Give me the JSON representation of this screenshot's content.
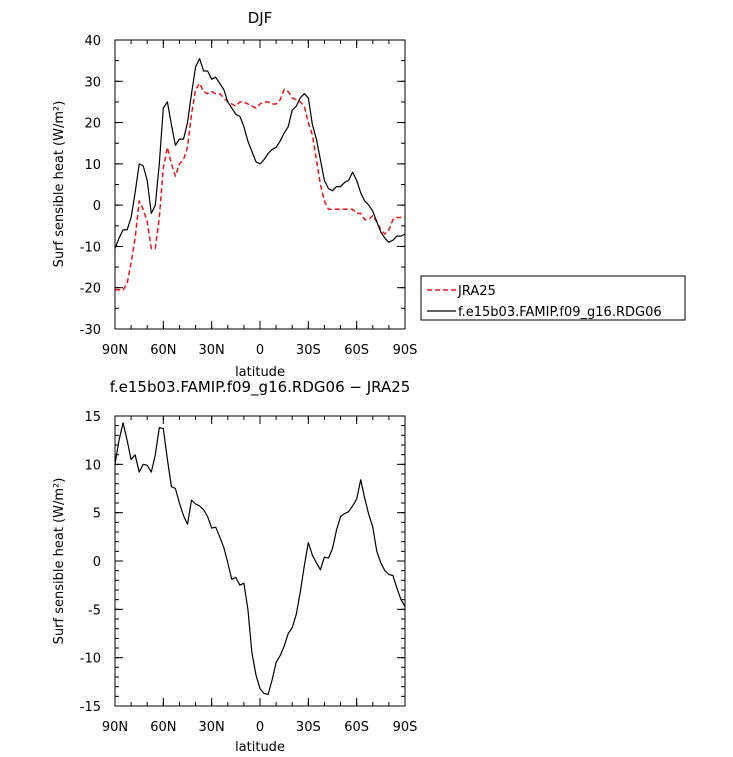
{
  "chart_data": [
    {
      "type": "line",
      "title": "DJF",
      "xlabel": "latitude",
      "ylabel": "Surf sensible heat (W/m²)",
      "xlim": [
        90,
        -90
      ],
      "ylim": [
        -30,
        40
      ],
      "x_tick_values": [
        90,
        60,
        30,
        0,
        -30,
        -60,
        -90
      ],
      "x_tick_labels": [
        "90N",
        "60N",
        "30N",
        "0",
        "30S",
        "60S",
        "90S"
      ],
      "y_ticks": [
        -30,
        -20,
        -10,
        0,
        10,
        20,
        30,
        40
      ],
      "legend_position": "right",
      "series": [
        {
          "name": "JRA25",
          "color": "#e8141c",
          "dash": "dashed",
          "x": [
            90,
            87.5,
            85,
            82.5,
            80,
            77.5,
            75,
            72.5,
            70,
            67.5,
            65,
            62.5,
            60,
            57.5,
            55,
            52.5,
            50,
            47.5,
            45,
            42.5,
            40,
            37.5,
            35,
            32.5,
            30,
            27.5,
            25,
            22.5,
            20,
            17.5,
            15,
            12.5,
            10,
            7.5,
            5,
            2.5,
            0,
            -2.5,
            -5,
            -7.5,
            -10,
            -12.5,
            -15,
            -17.5,
            -20,
            -22.5,
            -25,
            -27.5,
            -30,
            -32.5,
            -35,
            -37.5,
            -40,
            -42.5,
            -45,
            -47.5,
            -50,
            -52.5,
            -55,
            -57.5,
            -60,
            -62.5,
            -65,
            -67.5,
            -70,
            -72.5,
            -75,
            -77.5,
            -80,
            -82.5,
            -85,
            -87.5,
            -90
          ],
          "values": [
            -20.5,
            -20.5,
            -20.5,
            -19,
            -14,
            -8,
            1,
            -1,
            -4,
            -10.5,
            -10.5,
            -3,
            9,
            14,
            10,
            7,
            10,
            11,
            14,
            22,
            28,
            29.5,
            27.5,
            27,
            27.5,
            27,
            27,
            26,
            25,
            24.5,
            24,
            25,
            25,
            24.5,
            24,
            23.5,
            24.5,
            25,
            25,
            24.5,
            24.5,
            25.5,
            28,
            27.5,
            26,
            25.5,
            25,
            24,
            20,
            17,
            11,
            5,
            1,
            -1,
            -1,
            -1,
            -1,
            -1,
            -1,
            -1,
            -2,
            -2,
            -3.5,
            -3.5,
            -2.5,
            -4,
            -6,
            -7,
            -6,
            -3.5,
            -3,
            -3,
            -3
          ]
        },
        {
          "name": "f.e15b03.FAMIP.f09_g16.RDG06",
          "color": "#000000",
          "dash": "solid",
          "x": [
            90,
            87.5,
            85,
            82.5,
            80,
            77.5,
            75,
            72.5,
            70,
            67.5,
            65,
            62.5,
            60,
            57.5,
            55,
            52.5,
            50,
            47.5,
            45,
            42.5,
            40,
            37.5,
            35,
            32.5,
            30,
            27.5,
            25,
            22.5,
            20,
            17.5,
            15,
            12.5,
            10,
            7.5,
            5,
            2.5,
            0,
            -2.5,
            -5,
            -7.5,
            -10,
            -12.5,
            -15,
            -17.5,
            -20,
            -22.5,
            -25,
            -27.5,
            -30,
            -32.5,
            -35,
            -37.5,
            -40,
            -42.5,
            -45,
            -47.5,
            -50,
            -52.5,
            -55,
            -57.5,
            -60,
            -62.5,
            -65,
            -67.5,
            -70,
            -72.5,
            -75,
            -77.5,
            -80,
            -82.5,
            -85,
            -87.5,
            -90
          ],
          "values": [
            -10.5,
            -8,
            -6,
            -6,
            -3,
            3,
            10,
            9.5,
            6,
            -2,
            0,
            10,
            23.5,
            25,
            19.5,
            14.5,
            16,
            16,
            20,
            27,
            33.5,
            35.5,
            32.5,
            32.5,
            30.5,
            31,
            29.5,
            28,
            25,
            23.5,
            22,
            21.5,
            19,
            15.5,
            13,
            10.5,
            10,
            11,
            12.5,
            13.5,
            14,
            15.5,
            17.5,
            19,
            23,
            24,
            26,
            27,
            26,
            19.5,
            16,
            11,
            6,
            4,
            3.5,
            4.5,
            4.5,
            5.5,
            6,
            8,
            6,
            3,
            1,
            0,
            -1.5,
            -4,
            -6.5,
            -8,
            -9,
            -8.5,
            -7.5,
            -7.5,
            -7
          ]
        }
      ]
    },
    {
      "type": "line",
      "title": "f.e15b03.FAMIP.f09_g16.RDG06 − JRA25",
      "xlabel": "latitude",
      "ylabel": "Surf sensible heat (W/m²)",
      "xlim": [
        90,
        -90
      ],
      "ylim": [
        -15,
        15
      ],
      "x_tick_values": [
        90,
        60,
        30,
        0,
        -30,
        -60,
        -90
      ],
      "x_tick_labels": [
        "90N",
        "60N",
        "30N",
        "0",
        "30S",
        "60S",
        "90S"
      ],
      "y_ticks": [
        -15,
        -10,
        -5,
        0,
        5,
        10,
        15
      ],
      "series": [
        {
          "color": "#000000",
          "dash": "solid",
          "x": [
            90,
            87.5,
            85,
            82.5,
            80,
            77.5,
            75,
            72.5,
            70,
            67.5,
            65,
            62.5,
            60,
            57.5,
            55,
            52.5,
            50,
            47.5,
            45,
            42.5,
            40,
            37.5,
            35,
            32.5,
            30,
            27.5,
            25,
            22.5,
            20,
            17.5,
            15,
            12.5,
            10,
            7.5,
            5,
            2.5,
            0,
            -2.5,
            -5,
            -7.5,
            -10,
            -12.5,
            -15,
            -17.5,
            -20,
            -22.5,
            -25,
            -27.5,
            -30,
            -32.5,
            -35,
            -37.5,
            -40,
            -42.5,
            -45,
            -47.5,
            -50,
            -52.5,
            -55,
            -57.5,
            -60,
            -62.5,
            -65,
            -67.5,
            -70,
            -72.5,
            -75,
            -77.5,
            -80,
            -82.5,
            -85,
            -87.5,
            -90
          ],
          "values": [
            10,
            12.5,
            14.3,
            12.5,
            10.5,
            11,
            9.2,
            10,
            9.9,
            9.2,
            11,
            13.8,
            13.7,
            10.5,
            7.7,
            7.5,
            6,
            4.7,
            3.8,
            6.3,
            5.9,
            5.7,
            5.3,
            4.6,
            3.4,
            3.5,
            2.5,
            1.4,
            -0.2,
            -1.9,
            -1.7,
            -2.5,
            -2.3,
            -5,
            -9.5,
            -11.8,
            -13.2,
            -13.7,
            -13.8,
            -12.3,
            -10.5,
            -9.8,
            -8.8,
            -7.5,
            -6.9,
            -5.5,
            -3.2,
            -0.5,
            1.9,
            0.6,
            -0.2,
            -0.9,
            0.4,
            0.3,
            1.3,
            3.2,
            4.6,
            4.9,
            5.1,
            5.7,
            6.4,
            8.4,
            6.5,
            4.8,
            3.5,
            1,
            -0.2,
            -1,
            -1.4,
            -1.5,
            -2.8,
            -4,
            -4.7
          ]
        }
      ]
    }
  ]
}
